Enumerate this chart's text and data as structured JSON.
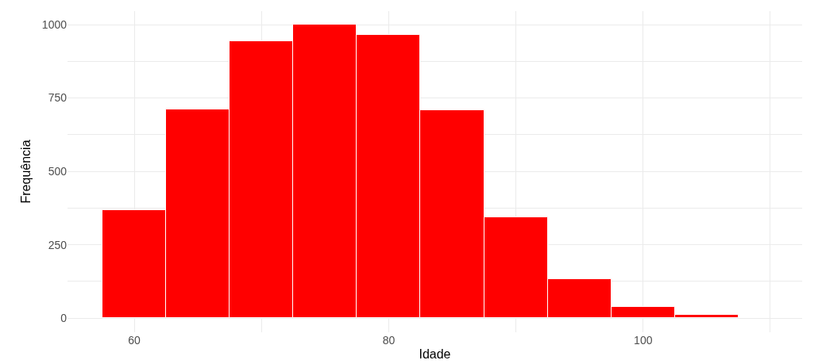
{
  "chart_data": {
    "type": "histogram",
    "xlabel": "Idade",
    "ylabel": "Frequência",
    "bins": [
      57.5,
      62.5,
      67.5,
      72.5,
      77.5,
      82.5,
      87.5,
      92.5,
      97.5,
      102.5,
      107.5
    ],
    "values": [
      367,
      711,
      943,
      1000,
      965,
      708,
      343,
      132,
      38,
      11
    ],
    "color": "#ff0000",
    "xlim": [
      54.75,
      112.5
    ],
    "xticks": [
      60,
      {
        "value": 70,
        "label": null
      },
      80,
      {
        "value": 90,
        "label": null
      },
      100,
      {
        "value": 110,
        "label": null
      }
    ],
    "ylim": [
      -48,
      1046
    ],
    "yticks": [
      0,
      {
        "value": 125,
        "label": null
      },
      250,
      {
        "value": 375,
        "label": null
      },
      500,
      {
        "value": 625,
        "label": null
      },
      750,
      {
        "value": 875,
        "label": null
      },
      1000
    ],
    "grid": true,
    "legend": false
  }
}
